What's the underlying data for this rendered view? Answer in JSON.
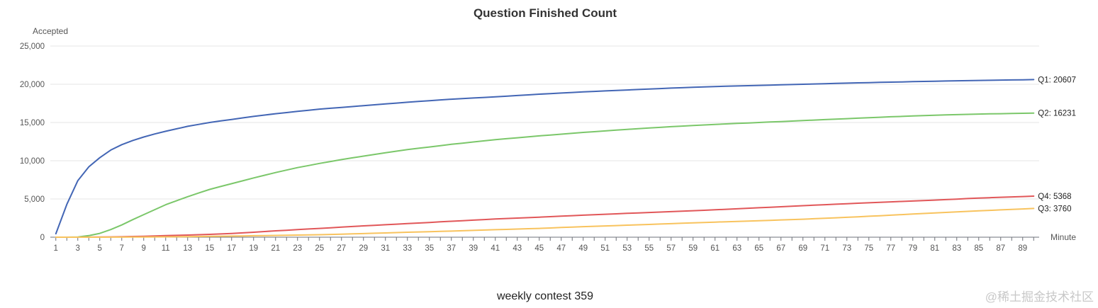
{
  "chart_data": {
    "type": "line",
    "title": "Question Finished Count",
    "ylabel": "Accepted",
    "xlabel": "Minute",
    "caption": "weekly contest 359",
    "watermark": "@稀土掘金技术社区",
    "x": {
      "start": 1,
      "end": 90,
      "tick_labels": [
        "1",
        "3",
        "5",
        "7",
        "9",
        "11",
        "13",
        "15",
        "17",
        "19",
        "21",
        "23",
        "25",
        "27",
        "29",
        "31",
        "33",
        "35",
        "37",
        "39",
        "41",
        "43",
        "45",
        "47",
        "49",
        "51",
        "53",
        "55",
        "57",
        "59",
        "61",
        "63",
        "65",
        "67",
        "69",
        "71",
        "73",
        "75",
        "77",
        "79",
        "81",
        "83",
        "85",
        "87",
        "89"
      ]
    },
    "ylim": [
      0,
      25000
    ],
    "y_tick_labels": [
      "0",
      "5,000",
      "10,000",
      "15,000",
      "20,000",
      "25,000"
    ],
    "y_ticks": [
      0,
      5000,
      10000,
      15000,
      20000,
      25000
    ],
    "grid": true,
    "series": [
      {
        "name": "Q1",
        "end_label": "Q1: 20607",
        "color": "#4366b5",
        "points": [
          [
            1,
            450
          ],
          [
            2,
            4300
          ],
          [
            3,
            7400
          ],
          [
            4,
            9200
          ],
          [
            5,
            10400
          ],
          [
            6,
            11400
          ],
          [
            7,
            12100
          ],
          [
            8,
            12650
          ],
          [
            9,
            13100
          ],
          [
            10,
            13500
          ],
          [
            11,
            13850
          ],
          [
            13,
            14500
          ],
          [
            15,
            15000
          ],
          [
            17,
            15400
          ],
          [
            19,
            15800
          ],
          [
            21,
            16150
          ],
          [
            25,
            16750
          ],
          [
            29,
            17200
          ],
          [
            33,
            17650
          ],
          [
            37,
            18050
          ],
          [
            41,
            18350
          ],
          [
            45,
            18700
          ],
          [
            49,
            19000
          ],
          [
            53,
            19250
          ],
          [
            57,
            19500
          ],
          [
            61,
            19700
          ],
          [
            65,
            19850
          ],
          [
            69,
            20000
          ],
          [
            73,
            20150
          ],
          [
            77,
            20280
          ],
          [
            81,
            20400
          ],
          [
            85,
            20500
          ],
          [
            90,
            20607
          ]
        ]
      },
      {
        "name": "Q2",
        "end_label": "Q2: 16231",
        "color": "#7bc76a",
        "points": [
          [
            1,
            0
          ],
          [
            2,
            0
          ],
          [
            3,
            30
          ],
          [
            4,
            200
          ],
          [
            5,
            500
          ],
          [
            6,
            1000
          ],
          [
            7,
            1600
          ],
          [
            8,
            2300
          ],
          [
            9,
            2950
          ],
          [
            10,
            3600
          ],
          [
            11,
            4250
          ],
          [
            13,
            5300
          ],
          [
            15,
            6250
          ],
          [
            17,
            7000
          ],
          [
            19,
            7750
          ],
          [
            21,
            8450
          ],
          [
            23,
            9100
          ],
          [
            25,
            9650
          ],
          [
            27,
            10150
          ],
          [
            29,
            10600
          ],
          [
            31,
            11050
          ],
          [
            33,
            11450
          ],
          [
            37,
            12150
          ],
          [
            41,
            12750
          ],
          [
            45,
            13250
          ],
          [
            49,
            13700
          ],
          [
            53,
            14100
          ],
          [
            57,
            14450
          ],
          [
            61,
            14750
          ],
          [
            65,
            15000
          ],
          [
            69,
            15250
          ],
          [
            73,
            15500
          ],
          [
            77,
            15750
          ],
          [
            81,
            15950
          ],
          [
            85,
            16100
          ],
          [
            90,
            16231
          ]
        ]
      },
      {
        "name": "Q4",
        "end_label": "Q4: 5368",
        "color": "#e15759",
        "points": [
          [
            1,
            0
          ],
          [
            3,
            0
          ],
          [
            5,
            20
          ],
          [
            7,
            60
          ],
          [
            9,
            120
          ],
          [
            11,
            200
          ],
          [
            13,
            280
          ],
          [
            15,
            370
          ],
          [
            17,
            480
          ],
          [
            19,
            650
          ],
          [
            21,
            830
          ],
          [
            25,
            1150
          ],
          [
            29,
            1480
          ],
          [
            33,
            1780
          ],
          [
            37,
            2080
          ],
          [
            41,
            2380
          ],
          [
            45,
            2620
          ],
          [
            49,
            2880
          ],
          [
            53,
            3120
          ],
          [
            57,
            3340
          ],
          [
            61,
            3580
          ],
          [
            65,
            3850
          ],
          [
            69,
            4120
          ],
          [
            73,
            4380
          ],
          [
            77,
            4620
          ],
          [
            81,
            4850
          ],
          [
            85,
            5120
          ],
          [
            90,
            5368
          ]
        ]
      },
      {
        "name": "Q3",
        "end_label": "Q3: 3760",
        "color": "#f8c35e",
        "points": [
          [
            1,
            0
          ],
          [
            5,
            0
          ],
          [
            9,
            20
          ],
          [
            13,
            70
          ],
          [
            17,
            150
          ],
          [
            21,
            230
          ],
          [
            25,
            320
          ],
          [
            29,
            470
          ],
          [
            33,
            650
          ],
          [
            37,
            800
          ],
          [
            41,
            980
          ],
          [
            45,
            1150
          ],
          [
            49,
            1380
          ],
          [
            53,
            1570
          ],
          [
            57,
            1770
          ],
          [
            61,
            1970
          ],
          [
            65,
            2160
          ],
          [
            69,
            2350
          ],
          [
            73,
            2600
          ],
          [
            77,
            2880
          ],
          [
            81,
            3170
          ],
          [
            85,
            3450
          ],
          [
            90,
            3760
          ]
        ]
      }
    ]
  }
}
